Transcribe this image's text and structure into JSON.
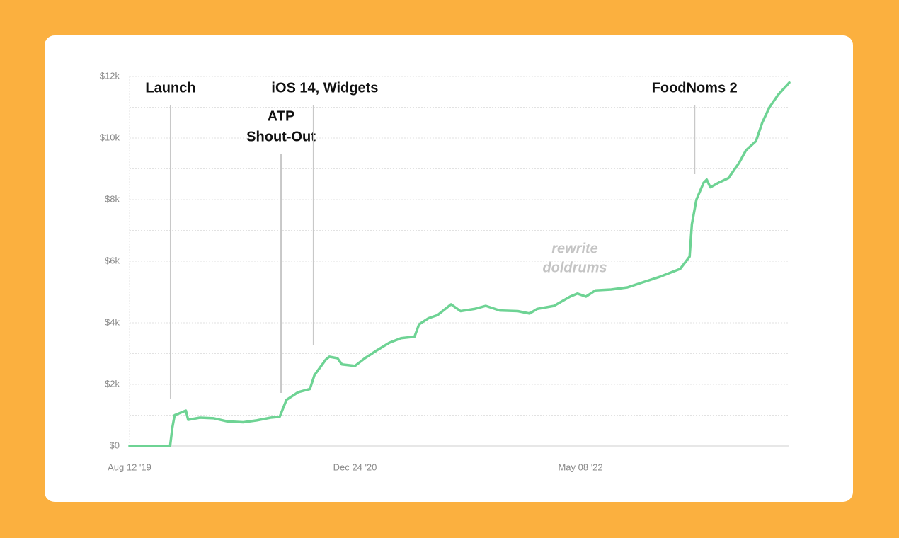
{
  "chart_data": {
    "type": "line",
    "x": [
      "2019-08-12",
      "2019-11-10",
      "2019-11-15",
      "2019-11-20",
      "2019-12-15",
      "2019-12-20",
      "2020-01-15",
      "2020-02-15",
      "2020-03-15",
      "2020-04-20",
      "2020-05-20",
      "2020-06-20",
      "2020-07-10",
      "2020-07-25",
      "2020-08-20",
      "2020-09-15",
      "2020-09-25",
      "2020-10-20",
      "2020-10-28",
      "2020-11-15",
      "2020-11-25",
      "2020-12-24",
      "2021-01-15",
      "2021-02-10",
      "2021-03-10",
      "2021-04-05",
      "2021-05-05",
      "2021-05-15",
      "2021-06-05",
      "2021-06-25",
      "2021-07-25",
      "2021-08-15",
      "2021-09-15",
      "2021-10-10",
      "2021-11-10",
      "2021-12-20",
      "2022-01-15",
      "2022-02-01",
      "2022-03-10",
      "2022-04-15",
      "2022-05-01",
      "2022-05-20",
      "2022-06-10",
      "2022-07-15",
      "2022-08-20",
      "2022-09-20",
      "2022-11-01",
      "2022-12-15",
      "2023-01-05",
      "2023-01-10",
      "2023-01-20",
      "2023-02-05",
      "2023-02-12",
      "2023-02-20",
      "2023-03-10",
      "2023-04-01",
      "2023-04-25",
      "2023-05-10",
      "2023-06-01",
      "2023-06-15",
      "2023-07-01",
      "2023-07-20",
      "2023-08-14"
    ],
    "series": [
      {
        "color": "#6ED394",
        "values": [
          0,
          0,
          600,
          1000,
          1150,
          850,
          920,
          900,
          800,
          770,
          830,
          920,
          950,
          1500,
          1750,
          1850,
          2300,
          2800,
          2900,
          2850,
          2650,
          2600,
          2850,
          3100,
          3350,
          3500,
          3550,
          3950,
          4150,
          4250,
          4600,
          4380,
          4450,
          4550,
          4400,
          4380,
          4300,
          4450,
          4550,
          4850,
          4950,
          4850,
          5050,
          5080,
          5150,
          5300,
          5500,
          5750,
          6150,
          7200,
          8000,
          8550,
          8650,
          8400,
          8550,
          8700,
          9200,
          9600,
          9900,
          10500,
          11000,
          11400,
          11800
        ]
      }
    ],
    "xlim": [
      "2019-08-12",
      "2023-08-14"
    ],
    "xticks": [
      {
        "value": "2019-08-12",
        "label": "Aug 12 '19"
      },
      {
        "value": "2020-12-24",
        "label": "Dec 24 '20"
      },
      {
        "value": "2022-05-08",
        "label": "May 08 '22"
      }
    ],
    "ylim": [
      0,
      12000
    ],
    "yticks": [
      {
        "value": 0,
        "label": "$0"
      },
      {
        "value": 2000,
        "label": "$2k"
      },
      {
        "value": 4000,
        "label": "$4k"
      },
      {
        "value": 6000,
        "label": "$6k"
      },
      {
        "value": 8000,
        "label": "$8k"
      },
      {
        "value": 10000,
        "label": "$10k"
      },
      {
        "value": 12000,
        "label": "$12k"
      }
    ],
    "minor_yticks": [
      1000,
      3000,
      5000,
      7000,
      9000,
      11000
    ],
    "grid": true,
    "annotations": [
      {
        "lines": [
          "Launch"
        ],
        "x": "2019-11-11"
      },
      {
        "lines": [
          "ATP",
          "Shout-Out"
        ],
        "x": "2020-07-13"
      },
      {
        "lines": [
          "iOS 14, Widgets"
        ],
        "x": "2020-09-23"
      },
      {
        "lines": [
          "FoodNoms 2"
        ],
        "x": "2023-01-16"
      }
    ],
    "note": [
      "rewrite",
      "doldrums"
    ]
  }
}
